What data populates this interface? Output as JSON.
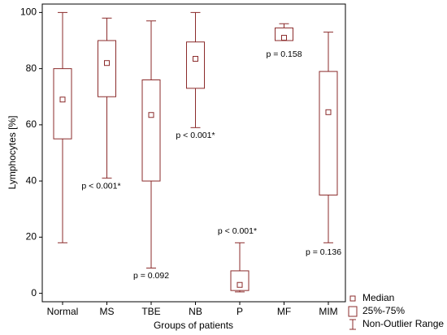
{
  "chart_data": {
    "type": "box",
    "xlabel": "Groups of patients",
    "ylabel": "Lymphocytes [%]",
    "categories": [
      "Normal",
      "MS",
      "TBE",
      "NB",
      "P",
      "MF",
      "MIM"
    ],
    "whisker_high": [
      100,
      98,
      97,
      100,
      18,
      96,
      93
    ],
    "q3": [
      80,
      90,
      76,
      89.5,
      8,
      94.5,
      79
    ],
    "median": [
      69,
      82,
      63.5,
      83.5,
      3,
      91,
      64.5
    ],
    "q1": [
      55,
      70,
      40,
      73,
      1,
      90,
      35
    ],
    "whisker_low": [
      18,
      41,
      9,
      59,
      0.5,
      90,
      18
    ],
    "p_values": [
      null,
      "p < 0.001*",
      "p = 0.092",
      "p < 0.001*",
      "p < 0.001*",
      "p = 0.158",
      "p = 0.136"
    ],
    "color": "#8b2b2b",
    "ylim": [
      -3,
      103
    ],
    "yticks": [
      0,
      20,
      40,
      60,
      80,
      100
    ],
    "legend": {
      "position": "bottom-right",
      "entries": [
        "Median",
        "25%-75%",
        "Non-Outlier Range"
      ]
    }
  }
}
